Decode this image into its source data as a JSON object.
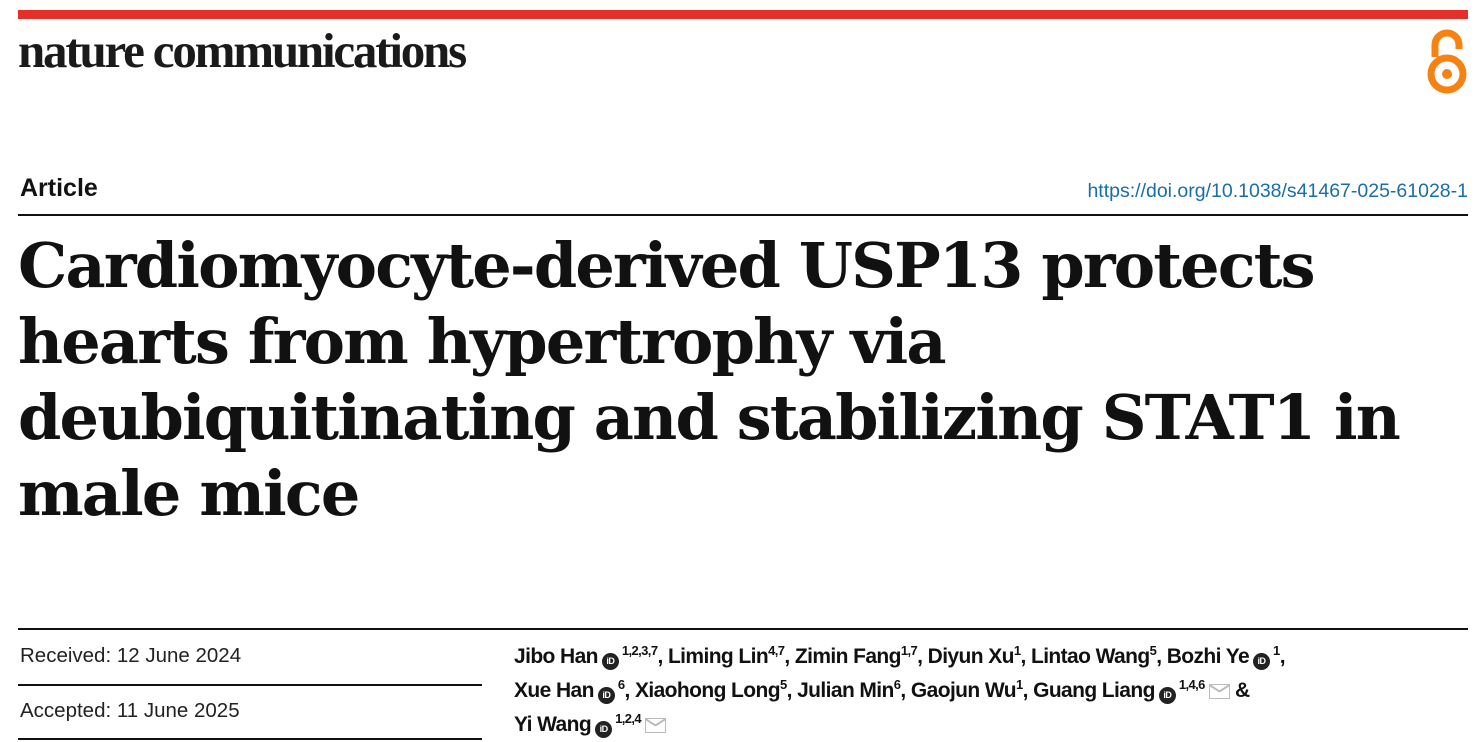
{
  "header": {
    "journal": "nature communications",
    "open_access_icon": "open-access-lock-icon",
    "brand_color": "#e3312a",
    "oa_color": "#f68212"
  },
  "article_type": "Article",
  "doi": "https://doi.org/10.1038/s41467-025-61028-1",
  "title_lines": [
    "Cardiomyocyte-derived USP13 protects",
    "hearts from hypertrophy via",
    "deubiquitinating and stabilizing STAT1 in",
    "male mice"
  ],
  "dates": {
    "received": "Received: 12 June 2024",
    "accepted": "Accepted: 11 June 2025"
  },
  "authors": [
    {
      "name": "Jibo Han",
      "orcid": true,
      "sup": "1,2,3,7",
      "sep": ", "
    },
    {
      "name": "Liming Lin",
      "sup": "4,7",
      "sep": ", "
    },
    {
      "name": "Zimin Fang",
      "sup": "1,7",
      "sep": ", "
    },
    {
      "name": "Diyun Xu",
      "sup": "1",
      "sep": ", "
    },
    {
      "name": "Lintao Wang",
      "sup": "5",
      "sep": ", "
    },
    {
      "name": "Bozhi Ye",
      "orcid": true,
      "sup": "1",
      "sep": ", "
    },
    {
      "name": "Xue Han",
      "orcid": true,
      "sup": "6",
      "sep": ", "
    },
    {
      "name": "Xiaohong Long",
      "sup": "5",
      "sep": ", "
    },
    {
      "name": "Julian Min",
      "sup": "6",
      "sep": ", "
    },
    {
      "name": "Gaojun Wu",
      "sup": "1",
      "sep": ", "
    },
    {
      "name": "Guang Liang",
      "orcid": true,
      "sup": "1,4,6",
      "email": true,
      "sep": " & "
    },
    {
      "name": "Yi Wang",
      "orcid": true,
      "sup": "1,2,4",
      "email": true,
      "sep": ""
    }
  ],
  "orcid_label": "iD"
}
